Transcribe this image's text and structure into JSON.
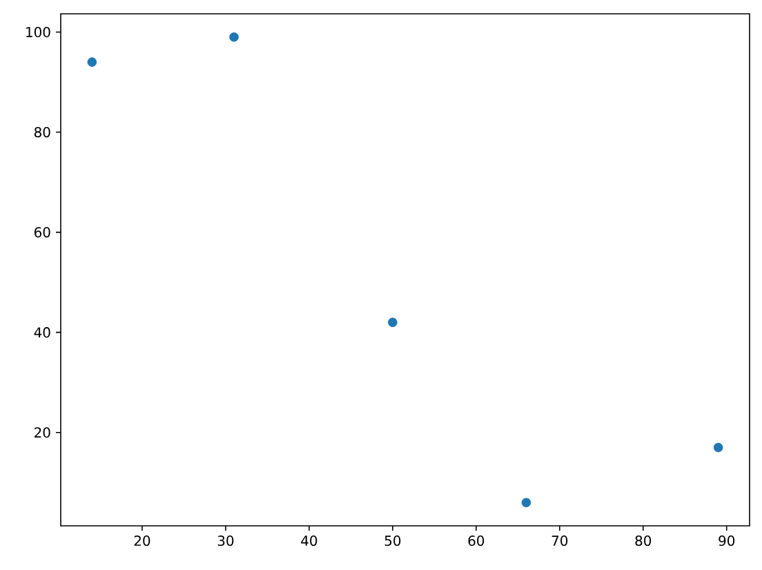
{
  "chart_data": {
    "type": "scatter",
    "x": [
      14,
      31,
      50,
      66,
      89
    ],
    "values": [
      94,
      99,
      42,
      6,
      17
    ],
    "color": "#1f77b4",
    "marker": "circle",
    "xlim": [
      10.25,
      92.75
    ],
    "xticks": [
      20,
      30,
      40,
      50,
      60,
      70,
      80,
      90
    ],
    "ylim": [
      1.35,
      103.65
    ],
    "yticks": [
      20,
      40,
      60,
      80,
      100
    ],
    "grid": false
  }
}
